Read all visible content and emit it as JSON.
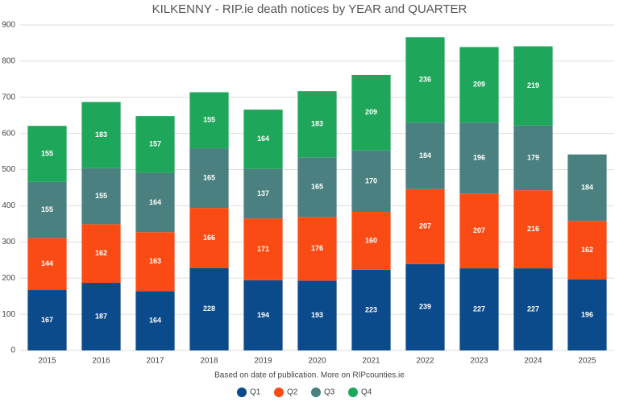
{
  "chart_data": {
    "type": "bar",
    "stacked": true,
    "title": "KILKENNY - RIP.ie death notices by YEAR and QUARTER",
    "subtitle": "Based on date of publication. More on RIPcounties.ie",
    "categories": [
      "2015",
      "2016",
      "2017",
      "2018",
      "2019",
      "2020",
      "2021",
      "2022",
      "2023",
      "2024",
      "2025"
    ],
    "series": [
      {
        "name": "Q1",
        "color": "#0b4a8b",
        "values": [
          167,
          187,
          164,
          228,
          194,
          193,
          223,
          239,
          227,
          227,
          196
        ]
      },
      {
        "name": "Q2",
        "color": "#fa4b14",
        "values": [
          144,
          162,
          163,
          166,
          171,
          176,
          160,
          207,
          207,
          216,
          162
        ]
      },
      {
        "name": "Q3",
        "color": "#4a8080",
        "values": [
          155,
          155,
          164,
          165,
          137,
          165,
          170,
          184,
          196,
          179,
          184
        ]
      },
      {
        "name": "Q4",
        "color": "#1ea75a",
        "values": [
          155,
          183,
          157,
          155,
          164,
          183,
          209,
          236,
          209,
          219,
          null
        ]
      }
    ],
    "ylim": [
      0,
      900
    ],
    "yticks": [
      0,
      100,
      200,
      300,
      400,
      500,
      600,
      700,
      800,
      900
    ],
    "grid": true,
    "legend": "bottom"
  }
}
